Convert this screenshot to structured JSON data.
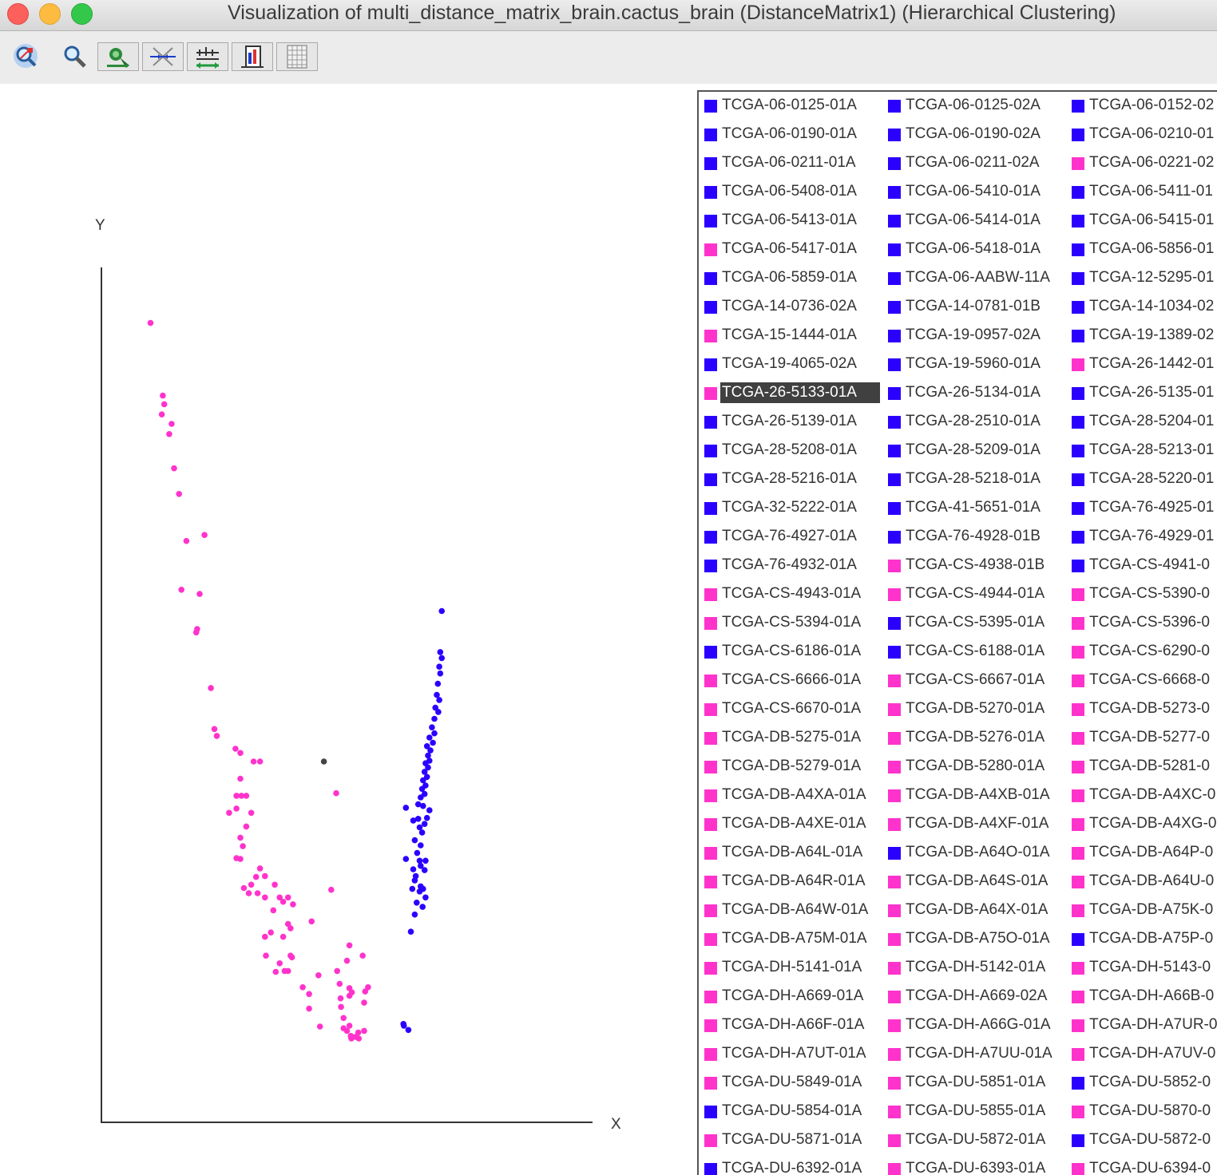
{
  "window": {
    "title": "Visualization of multi_distance_matrix_brain.cactus_brain (DistanceMatrix1)  (Hierarchical Clustering)"
  },
  "toolbar": {
    "buttons": [
      {
        "name": "select-zoom-icon"
      },
      {
        "name": "magnifier-icon"
      },
      {
        "name": "color-picker-icon"
      },
      {
        "name": "compress-icon"
      },
      {
        "name": "scale-icon"
      },
      {
        "name": "export-chart-icon"
      },
      {
        "name": "table-icon"
      }
    ]
  },
  "colors": {
    "pink": "#ff33cc",
    "blue": "#2a00ff",
    "dark": "#444444"
  },
  "chart_data": {
    "type": "scatter",
    "xlabel": "X",
    "ylabel": "Y",
    "title": "",
    "grid": false,
    "legend": "right",
    "xlim": [
      0,
      100
    ],
    "ylim": [
      0,
      100
    ],
    "series": [
      {
        "color": "#ff33cc",
        "points": [
          [
            10,
            93.5
          ],
          [
            12.5,
            85
          ],
          [
            12.8,
            84
          ],
          [
            12.3,
            82.8
          ],
          [
            14.3,
            81.7
          ],
          [
            13.8,
            80.5
          ],
          [
            14.8,
            76.5
          ],
          [
            15.8,
            73.5
          ],
          [
            21,
            68.7
          ],
          [
            17.3,
            68
          ],
          [
            16.3,
            62.3
          ],
          [
            20,
            61.8
          ],
          [
            19.5,
            57.7
          ],
          [
            19.3,
            57.3
          ],
          [
            22.3,
            50.8
          ],
          [
            23,
            46
          ],
          [
            23.5,
            45.2
          ],
          [
            27.3,
            43.7
          ],
          [
            28.3,
            43.2
          ],
          [
            31,
            42.2
          ],
          [
            28.3,
            40.2
          ],
          [
            32.3,
            42.2
          ],
          [
            27.5,
            38.2
          ],
          [
            28.5,
            38.2
          ],
          [
            29.5,
            38.2
          ],
          [
            27.5,
            36.7
          ],
          [
            26,
            36.2
          ],
          [
            30.5,
            36.2
          ],
          [
            29.5,
            34.6
          ],
          [
            28.3,
            33.3
          ],
          [
            28.8,
            32.3
          ],
          [
            27.5,
            30.9
          ],
          [
            28.3,
            30.8
          ],
          [
            31.5,
            28.7
          ],
          [
            32.3,
            29.7
          ],
          [
            33.3,
            28.8
          ],
          [
            30.5,
            27.8
          ],
          [
            35.3,
            27.8
          ],
          [
            30,
            26.8
          ],
          [
            29,
            27.4
          ],
          [
            31.8,
            26.8
          ],
          [
            33.3,
            26.3
          ],
          [
            36.3,
            26.3
          ],
          [
            38,
            26.3
          ],
          [
            35,
            24.8
          ],
          [
            37,
            25.8
          ],
          [
            39,
            25.5
          ],
          [
            46.8,
            27.2
          ],
          [
            38,
            23.2
          ],
          [
            42.8,
            23.5
          ],
          [
            34.5,
            22.2
          ],
          [
            33.3,
            21.7
          ],
          [
            37,
            21.7
          ],
          [
            38.5,
            22.7
          ],
          [
            50.5,
            20.7
          ],
          [
            33.5,
            19.5
          ],
          [
            38.5,
            19.5
          ],
          [
            38.8,
            19.3
          ],
          [
            37.3,
            17.7
          ],
          [
            41,
            15.8
          ],
          [
            36.3,
            18.6
          ],
          [
            35.5,
            17.6
          ],
          [
            38,
            17.7
          ],
          [
            48,
            17.7
          ],
          [
            50,
            18.9
          ],
          [
            53.2,
            19.5
          ],
          [
            42.3,
            15
          ],
          [
            44.2,
            17.2
          ],
          [
            48.5,
            16.2
          ],
          [
            53.7,
            15.3
          ],
          [
            48.7,
            14.5
          ],
          [
            50.5,
            14.8
          ],
          [
            53.5,
            14
          ],
          [
            42.3,
            13.3
          ],
          [
            49.3,
            12.2
          ],
          [
            48.8,
            13.5
          ],
          [
            50.5,
            15.7
          ],
          [
            51,
            15.2
          ],
          [
            44.5,
            11.2
          ],
          [
            49.3,
            11
          ],
          [
            50,
            10.7
          ],
          [
            52.3,
            10.5
          ],
          [
            50.8,
            10
          ],
          [
            51.8,
            10
          ],
          [
            53.5,
            10.7
          ],
          [
            50.5,
            11.3
          ],
          [
            50.9,
            9.8
          ],
          [
            52.4,
            9.8
          ],
          [
            50.8,
            10.1
          ],
          [
            54.3,
            15.8
          ],
          [
            47.8,
            38.5
          ]
        ]
      },
      {
        "color": "#2a00ff",
        "points": [
          [
            69.3,
            59.8
          ],
          [
            69,
            55
          ],
          [
            69.3,
            54.3
          ],
          [
            68.8,
            53.3
          ],
          [
            69,
            52.5
          ],
          [
            68.5,
            51.3
          ],
          [
            68.3,
            50
          ],
          [
            68.8,
            49.4
          ],
          [
            68,
            48.5
          ],
          [
            68.6,
            48
          ],
          [
            67.8,
            47.2
          ],
          [
            67.3,
            46.2
          ],
          [
            67.8,
            45.5
          ],
          [
            66.8,
            45
          ],
          [
            67.5,
            44.4
          ],
          [
            66.3,
            44
          ],
          [
            67,
            43.5
          ],
          [
            66.5,
            42.9
          ],
          [
            66.8,
            42.3
          ],
          [
            66,
            42
          ],
          [
            66.5,
            41.5
          ],
          [
            65.8,
            41
          ],
          [
            66.3,
            40.4
          ],
          [
            65.5,
            40
          ],
          [
            66,
            39.4
          ],
          [
            65.3,
            39
          ],
          [
            65.8,
            38.4
          ],
          [
            65,
            38
          ],
          [
            64.5,
            37.2
          ],
          [
            62,
            36.8
          ],
          [
            65.5,
            37
          ],
          [
            66.8,
            36.5
          ],
          [
            64.5,
            35.5
          ],
          [
            66.3,
            35.6
          ],
          [
            65.8,
            34.9
          ],
          [
            63.5,
            35.3
          ],
          [
            64.8,
            34.5
          ],
          [
            65.3,
            33.9
          ],
          [
            63.8,
            33
          ],
          [
            65,
            32.4
          ],
          [
            64.3,
            31.5
          ],
          [
            64.8,
            30.6
          ],
          [
            66,
            30.6
          ],
          [
            65,
            30
          ],
          [
            65.8,
            29.5
          ],
          [
            62,
            30.8
          ],
          [
            63.5,
            29.6
          ],
          [
            64,
            28.8
          ],
          [
            63.8,
            28.3
          ],
          [
            65,
            27.6
          ],
          [
            63.3,
            27.3
          ],
          [
            64.8,
            27
          ],
          [
            65.5,
            27.3
          ],
          [
            64.2,
            25.7
          ],
          [
            65.4,
            25.2
          ],
          [
            66,
            26.3
          ],
          [
            63.8,
            24.3
          ],
          [
            63,
            22.3
          ],
          [
            61.5,
            11.5
          ],
          [
            61.6,
            11.3
          ],
          [
            62.5,
            10.8
          ]
        ]
      },
      {
        "color": "#444444",
        "points": [
          [
            45.3,
            42.2
          ]
        ]
      }
    ]
  },
  "legend": {
    "items": [
      {
        "label": "TCGA-06-0125-01A",
        "color": "#2a00ff"
      },
      {
        "label": "TCGA-06-0125-02A",
        "color": "#2a00ff"
      },
      {
        "label": "TCGA-06-0152-02",
        "color": "#2a00ff"
      },
      {
        "label": "TCGA-06-0190-01A",
        "color": "#2a00ff"
      },
      {
        "label": "TCGA-06-0190-02A",
        "color": "#2a00ff"
      },
      {
        "label": "TCGA-06-0210-01",
        "color": "#2a00ff"
      },
      {
        "label": "TCGA-06-0211-01A",
        "color": "#2a00ff"
      },
      {
        "label": "TCGA-06-0211-02A",
        "color": "#2a00ff"
      },
      {
        "label": "TCGA-06-0221-02",
        "color": "#ff33cc"
      },
      {
        "label": "TCGA-06-5408-01A",
        "color": "#2a00ff"
      },
      {
        "label": "TCGA-06-5410-01A",
        "color": "#2a00ff"
      },
      {
        "label": "TCGA-06-5411-01",
        "color": "#2a00ff"
      },
      {
        "label": "TCGA-06-5413-01A",
        "color": "#2a00ff"
      },
      {
        "label": "TCGA-06-5414-01A",
        "color": "#2a00ff"
      },
      {
        "label": "TCGA-06-5415-01",
        "color": "#2a00ff"
      },
      {
        "label": "TCGA-06-5417-01A",
        "color": "#ff33cc"
      },
      {
        "label": "TCGA-06-5418-01A",
        "color": "#2a00ff"
      },
      {
        "label": "TCGA-06-5856-01",
        "color": "#2a00ff"
      },
      {
        "label": "TCGA-06-5859-01A",
        "color": "#2a00ff"
      },
      {
        "label": "TCGA-06-AABW-11A",
        "color": "#2a00ff"
      },
      {
        "label": "TCGA-12-5295-01",
        "color": "#2a00ff"
      },
      {
        "label": "TCGA-14-0736-02A",
        "color": "#2a00ff"
      },
      {
        "label": "TCGA-14-0781-01B",
        "color": "#2a00ff"
      },
      {
        "label": "TCGA-14-1034-02",
        "color": "#2a00ff"
      },
      {
        "label": "TCGA-15-1444-01A",
        "color": "#ff33cc"
      },
      {
        "label": "TCGA-19-0957-02A",
        "color": "#2a00ff"
      },
      {
        "label": "TCGA-19-1389-02",
        "color": "#2a00ff"
      },
      {
        "label": "TCGA-19-4065-02A",
        "color": "#2a00ff"
      },
      {
        "label": "TCGA-19-5960-01A",
        "color": "#2a00ff"
      },
      {
        "label": "TCGA-26-1442-01",
        "color": "#ff33cc"
      },
      {
        "label": "TCGA-26-5133-01A",
        "color": "#ff33cc",
        "selected": true
      },
      {
        "label": "TCGA-26-5134-01A",
        "color": "#2a00ff"
      },
      {
        "label": "TCGA-26-5135-01",
        "color": "#2a00ff"
      },
      {
        "label": "TCGA-26-5139-01A",
        "color": "#2a00ff"
      },
      {
        "label": "TCGA-28-2510-01A",
        "color": "#2a00ff"
      },
      {
        "label": "TCGA-28-5204-01",
        "color": "#2a00ff"
      },
      {
        "label": "TCGA-28-5208-01A",
        "color": "#2a00ff"
      },
      {
        "label": "TCGA-28-5209-01A",
        "color": "#2a00ff"
      },
      {
        "label": "TCGA-28-5213-01",
        "color": "#2a00ff"
      },
      {
        "label": "TCGA-28-5216-01A",
        "color": "#2a00ff"
      },
      {
        "label": "TCGA-28-5218-01A",
        "color": "#2a00ff"
      },
      {
        "label": "TCGA-28-5220-01",
        "color": "#2a00ff"
      },
      {
        "label": "TCGA-32-5222-01A",
        "color": "#2a00ff"
      },
      {
        "label": "TCGA-41-5651-01A",
        "color": "#2a00ff"
      },
      {
        "label": "TCGA-76-4925-01",
        "color": "#2a00ff"
      },
      {
        "label": "TCGA-76-4927-01A",
        "color": "#2a00ff"
      },
      {
        "label": "TCGA-76-4928-01B",
        "color": "#2a00ff"
      },
      {
        "label": "TCGA-76-4929-01",
        "color": "#2a00ff"
      },
      {
        "label": "TCGA-76-4932-01A",
        "color": "#2a00ff"
      },
      {
        "label": "TCGA-CS-4938-01B",
        "color": "#ff33cc"
      },
      {
        "label": "TCGA-CS-4941-0",
        "color": "#2a00ff"
      },
      {
        "label": "TCGA-CS-4943-01A",
        "color": "#ff33cc"
      },
      {
        "label": "TCGA-CS-4944-01A",
        "color": "#ff33cc"
      },
      {
        "label": "TCGA-CS-5390-0",
        "color": "#ff33cc"
      },
      {
        "label": "TCGA-CS-5394-01A",
        "color": "#ff33cc"
      },
      {
        "label": "TCGA-CS-5395-01A",
        "color": "#2a00ff"
      },
      {
        "label": "TCGA-CS-5396-0",
        "color": "#ff33cc"
      },
      {
        "label": "TCGA-CS-6186-01A",
        "color": "#2a00ff"
      },
      {
        "label": "TCGA-CS-6188-01A",
        "color": "#2a00ff"
      },
      {
        "label": "TCGA-CS-6290-0",
        "color": "#ff33cc"
      },
      {
        "label": "TCGA-CS-6666-01A",
        "color": "#ff33cc"
      },
      {
        "label": "TCGA-CS-6667-01A",
        "color": "#ff33cc"
      },
      {
        "label": "TCGA-CS-6668-0",
        "color": "#ff33cc"
      },
      {
        "label": "TCGA-CS-6670-01A",
        "color": "#ff33cc"
      },
      {
        "label": "TCGA-DB-5270-01A",
        "color": "#ff33cc"
      },
      {
        "label": "TCGA-DB-5273-0",
        "color": "#ff33cc"
      },
      {
        "label": "TCGA-DB-5275-01A",
        "color": "#ff33cc"
      },
      {
        "label": "TCGA-DB-5276-01A",
        "color": "#ff33cc"
      },
      {
        "label": "TCGA-DB-5277-0",
        "color": "#ff33cc"
      },
      {
        "label": "TCGA-DB-5279-01A",
        "color": "#ff33cc"
      },
      {
        "label": "TCGA-DB-5280-01A",
        "color": "#ff33cc"
      },
      {
        "label": "TCGA-DB-5281-0",
        "color": "#ff33cc"
      },
      {
        "label": "TCGA-DB-A4XA-01A",
        "color": "#ff33cc"
      },
      {
        "label": "TCGA-DB-A4XB-01A",
        "color": "#ff33cc"
      },
      {
        "label": "TCGA-DB-A4XC-0",
        "color": "#ff33cc"
      },
      {
        "label": "TCGA-DB-A4XE-01A",
        "color": "#ff33cc"
      },
      {
        "label": "TCGA-DB-A4XF-01A",
        "color": "#ff33cc"
      },
      {
        "label": "TCGA-DB-A4XG-0",
        "color": "#ff33cc"
      },
      {
        "label": "TCGA-DB-A64L-01A",
        "color": "#ff33cc"
      },
      {
        "label": "TCGA-DB-A64O-01A",
        "color": "#2a00ff"
      },
      {
        "label": "TCGA-DB-A64P-0",
        "color": "#ff33cc"
      },
      {
        "label": "TCGA-DB-A64R-01A",
        "color": "#ff33cc"
      },
      {
        "label": "TCGA-DB-A64S-01A",
        "color": "#ff33cc"
      },
      {
        "label": "TCGA-DB-A64U-0",
        "color": "#ff33cc"
      },
      {
        "label": "TCGA-DB-A64W-01A",
        "color": "#ff33cc"
      },
      {
        "label": "TCGA-DB-A64X-01A",
        "color": "#ff33cc"
      },
      {
        "label": "TCGA-DB-A75K-0",
        "color": "#ff33cc"
      },
      {
        "label": "TCGA-DB-A75M-01A",
        "color": "#ff33cc"
      },
      {
        "label": "TCGA-DB-A75O-01A",
        "color": "#ff33cc"
      },
      {
        "label": "TCGA-DB-A75P-0",
        "color": "#2a00ff"
      },
      {
        "label": "TCGA-DH-5141-01A",
        "color": "#ff33cc"
      },
      {
        "label": "TCGA-DH-5142-01A",
        "color": "#ff33cc"
      },
      {
        "label": "TCGA-DH-5143-0",
        "color": "#ff33cc"
      },
      {
        "label": "TCGA-DH-A669-01A",
        "color": "#ff33cc"
      },
      {
        "label": "TCGA-DH-A669-02A",
        "color": "#ff33cc"
      },
      {
        "label": "TCGA-DH-A66B-0",
        "color": "#ff33cc"
      },
      {
        "label": "TCGA-DH-A66F-01A",
        "color": "#ff33cc"
      },
      {
        "label": "TCGA-DH-A66G-01A",
        "color": "#ff33cc"
      },
      {
        "label": "TCGA-DH-A7UR-0",
        "color": "#ff33cc"
      },
      {
        "label": "TCGA-DH-A7UT-01A",
        "color": "#ff33cc"
      },
      {
        "label": "TCGA-DH-A7UU-01A",
        "color": "#ff33cc"
      },
      {
        "label": "TCGA-DH-A7UV-0",
        "color": "#ff33cc"
      },
      {
        "label": "TCGA-DU-5849-01A",
        "color": "#ff33cc"
      },
      {
        "label": "TCGA-DU-5851-01A",
        "color": "#ff33cc"
      },
      {
        "label": "TCGA-DU-5852-0",
        "color": "#2a00ff"
      },
      {
        "label": "TCGA-DU-5854-01A",
        "color": "#2a00ff"
      },
      {
        "label": "TCGA-DU-5855-01A",
        "color": "#ff33cc"
      },
      {
        "label": "TCGA-DU-5870-0",
        "color": "#ff33cc"
      },
      {
        "label": "TCGA-DU-5871-01A",
        "color": "#ff33cc"
      },
      {
        "label": "TCGA-DU-5872-01A",
        "color": "#ff33cc"
      },
      {
        "label": "TCGA-DU-5872-0",
        "color": "#2a00ff"
      },
      {
        "label": "TCGA-DU-6392-01A",
        "color": "#2a00ff"
      },
      {
        "label": "TCGA-DU-6393-01A",
        "color": "#ff33cc"
      },
      {
        "label": "TCGA-DU-6394-0",
        "color": "#ff33cc"
      }
    ]
  }
}
